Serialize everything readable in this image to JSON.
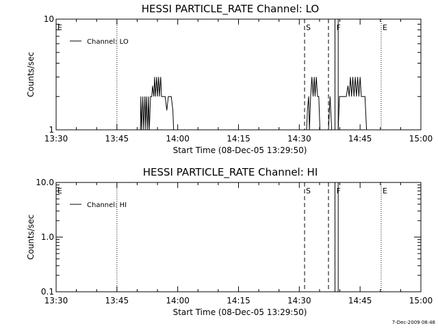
{
  "footer": {
    "timestamp": "7-Dec-2009 08:48"
  },
  "chart_data": [
    {
      "type": "line",
      "title": "HESSI PARTICLE_RATE Channel: LO",
      "xlabel": "Start Time (08-Dec-05 13:29:50)",
      "ylabel": "Counts/sec",
      "x_unit": "minutes after 13:30",
      "xlim": [
        0,
        90
      ],
      "ylim": [
        1,
        10
      ],
      "yscale": "log",
      "x_ticks": [
        {
          "value": 0,
          "label": "13:30"
        },
        {
          "value": 15,
          "label": "13:45"
        },
        {
          "value": 30,
          "label": "14:00"
        },
        {
          "value": 45,
          "label": "14:15"
        },
        {
          "value": 60,
          "label": "14:30"
        },
        {
          "value": 75,
          "label": "14:45"
        },
        {
          "value": 90,
          "label": "15:00"
        }
      ],
      "y_ticks": [
        {
          "value": 1,
          "label": "1"
        },
        {
          "value": 10,
          "label": "10"
        }
      ],
      "legend": {
        "position": "top-left",
        "entry": "Channel: LO"
      },
      "series": [
        {
          "name": "Channel: LO",
          "points": [
            [
              20.8,
              1
            ],
            [
              20.9,
              2
            ],
            [
              21.1,
              1
            ],
            [
              21.4,
              2
            ],
            [
              21.6,
              1
            ],
            [
              21.9,
              2
            ],
            [
              22.1,
              1
            ],
            [
              22.3,
              2
            ],
            [
              22.6,
              1
            ],
            [
              22.8,
              2
            ],
            [
              23.0,
              1
            ],
            [
              23.3,
              2
            ],
            [
              23.6,
              2
            ],
            [
              23.8,
              2.5
            ],
            [
              24.1,
              2
            ],
            [
              24.3,
              3
            ],
            [
              24.5,
              2
            ],
            [
              24.8,
              3
            ],
            [
              25.0,
              2
            ],
            [
              25.3,
              3
            ],
            [
              25.5,
              2
            ],
            [
              25.8,
              3
            ],
            [
              26.0,
              2
            ],
            [
              26.4,
              2
            ],
            [
              26.9,
              2
            ],
            [
              27.3,
              1.5
            ],
            [
              27.7,
              2
            ],
            [
              28.0,
              2
            ],
            [
              28.4,
              2
            ],
            [
              28.8,
              1.5
            ],
            [
              29.0,
              1
            ],
            [
              61.8,
              1
            ],
            [
              62.0,
              1.5
            ],
            [
              62.3,
              2
            ],
            [
              62.5,
              1
            ],
            [
              62.8,
              2
            ],
            [
              63.1,
              3
            ],
            [
              63.4,
              2
            ],
            [
              63.7,
              3
            ],
            [
              63.9,
              2
            ],
            [
              64.2,
              3
            ],
            [
              64.5,
              2
            ],
            [
              64.8,
              2
            ],
            [
              65.1,
              1
            ],
            [
              67.2,
              1
            ],
            [
              67.6,
              2
            ],
            [
              68.0,
              1
            ],
            [
              69.6,
              1
            ],
            [
              69.9,
              2
            ],
            [
              71.6,
              2
            ],
            [
              72.0,
              2.5
            ],
            [
              72.3,
              2
            ],
            [
              72.6,
              3
            ],
            [
              72.9,
              2
            ],
            [
              73.2,
              3
            ],
            [
              73.5,
              2
            ],
            [
              73.8,
              3
            ],
            [
              74.1,
              2
            ],
            [
              74.4,
              3
            ],
            [
              74.7,
              2
            ],
            [
              75.0,
              3
            ],
            [
              75.3,
              2
            ],
            [
              75.6,
              2
            ],
            [
              76.2,
              2
            ],
            [
              76.6,
              1
            ]
          ]
        }
      ],
      "markers": [
        {
          "label": "E",
          "x": 0,
          "style": "dotted"
        },
        {
          "label": "",
          "x": 15,
          "style": "dotted"
        },
        {
          "label": "S",
          "x": 61.3,
          "style": "dashed"
        },
        {
          "label": "",
          "x": 67.2,
          "style": "dashed"
        },
        {
          "label": "F",
          "x": 68.8,
          "style": "solid"
        },
        {
          "label": "",
          "x": 69.6,
          "style": "solid"
        },
        {
          "label": "E",
          "x": 80.2,
          "style": "dotted"
        },
        {
          "label": "",
          "x": 95,
          "style": "dotted"
        }
      ]
    },
    {
      "type": "line",
      "title": "HESSI PARTICLE_RATE Channel: HI",
      "xlabel": "Start Time (08-Dec-05 13:29:50)",
      "ylabel": "Counts/sec",
      "x_unit": "minutes after 13:30",
      "xlim": [
        0,
        90
      ],
      "ylim": [
        0.1,
        10
      ],
      "yscale": "log",
      "x_ticks": [
        {
          "value": 0,
          "label": "13:30"
        },
        {
          "value": 15,
          "label": "13:45"
        },
        {
          "value": 30,
          "label": "14:00"
        },
        {
          "value": 45,
          "label": "14:15"
        },
        {
          "value": 60,
          "label": "14:30"
        },
        {
          "value": 75,
          "label": "14:45"
        },
        {
          "value": 90,
          "label": "15:00"
        }
      ],
      "y_ticks": [
        {
          "value": 0.1,
          "label": "0.1"
        },
        {
          "value": 1,
          "label": "1.0"
        },
        {
          "value": 10,
          "label": "10.0"
        }
      ],
      "legend": {
        "position": "top-left",
        "entry": "Channel: HI"
      },
      "series": [
        {
          "name": "Channel: HI",
          "points": []
        }
      ],
      "markers": [
        {
          "label": "E",
          "x": 0,
          "style": "dotted"
        },
        {
          "label": "",
          "x": 15,
          "style": "dotted"
        },
        {
          "label": "S",
          "x": 61.3,
          "style": "dashed"
        },
        {
          "label": "",
          "x": 67.2,
          "style": "dashed"
        },
        {
          "label": "F",
          "x": 68.8,
          "style": "solid"
        },
        {
          "label": "",
          "x": 69.6,
          "style": "solid"
        },
        {
          "label": "E",
          "x": 80.2,
          "style": "dotted"
        },
        {
          "label": "",
          "x": 95,
          "style": "dotted"
        }
      ]
    }
  ]
}
